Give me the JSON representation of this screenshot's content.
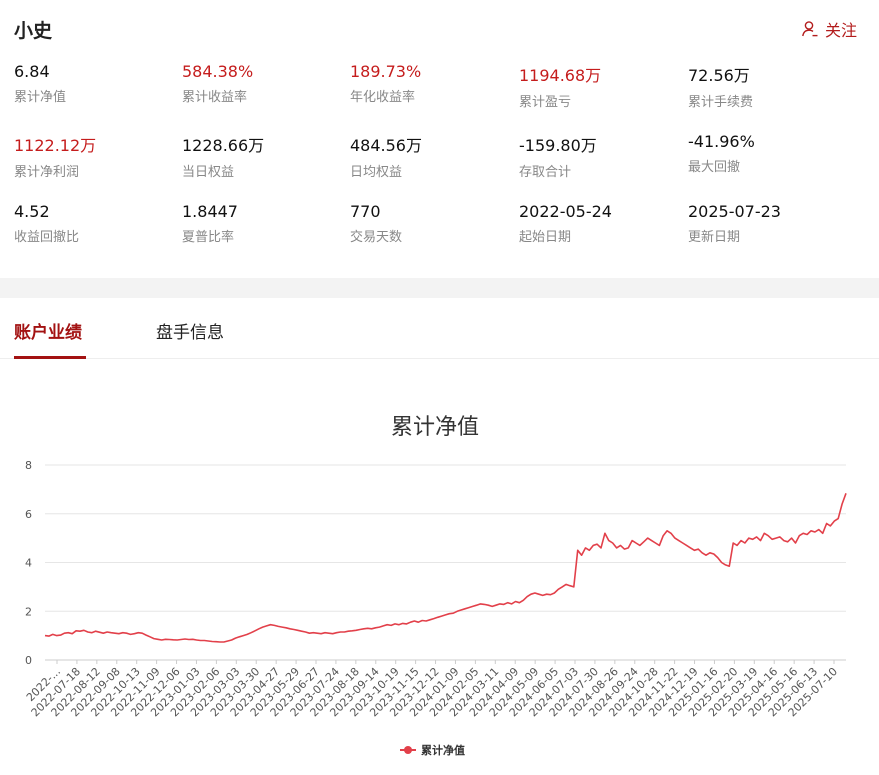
{
  "header": {
    "name": "小史",
    "follow_label": "关注"
  },
  "stats": [
    {
      "value": "6.84",
      "label": "累计净值",
      "red": false
    },
    {
      "value": "584.38%",
      "label": "累计收益率",
      "red": true
    },
    {
      "value": "189.73%",
      "label": "年化收益率",
      "red": true
    },
    {
      "value": "1194.68万",
      "label": "累计盈亏",
      "red": true
    },
    {
      "value": "72.56万",
      "label": "累计手续费",
      "red": false
    },
    {
      "value": "1122.12万",
      "label": "累计净利润",
      "red": true
    },
    {
      "value": "1228.66万",
      "label": "当日权益",
      "red": false
    },
    {
      "value": "484.56万",
      "label": "日均权益",
      "red": false
    },
    {
      "value": "-159.80万",
      "label": "存取合计",
      "red": false
    },
    {
      "value": "-41.96%",
      "label": "最大回撤",
      "red": false
    },
    {
      "value": "4.52",
      "label": "收益回撤比",
      "red": false
    },
    {
      "value": "1.8447",
      "label": "夏普比率",
      "red": false
    },
    {
      "value": "770",
      "label": "交易天数",
      "red": false
    },
    {
      "value": "2022-05-24",
      "label": "起始日期",
      "red": false
    },
    {
      "value": "2025-07-23",
      "label": "更新日期",
      "red": false
    }
  ],
  "tabs": [
    {
      "label": "账户业绩",
      "active": true
    },
    {
      "label": "盘手信息",
      "active": false
    }
  ],
  "colors": {
    "accent": "#a31212",
    "red_value": "#c51d1d",
    "series": "#e2404a"
  },
  "icons": {
    "follow": "user-outline-icon"
  },
  "chart_data": {
    "type": "line",
    "title": "累计净值",
    "legend": "bottom-center",
    "grid": true,
    "ylim": [
      0,
      8
    ],
    "yticks": [
      0,
      2,
      4,
      6,
      8
    ],
    "x_tick_labels": [
      "2022-...",
      "2022-07-18",
      "2022-08-12",
      "2022-09-08",
      "2022-10-13",
      "2022-11-09",
      "2022-12-06",
      "2023-01-03",
      "2023-02-06",
      "2023-03-03",
      "2023-03-30",
      "2023-04-27",
      "2023-05-29",
      "2023-06-27",
      "2023-07-24",
      "2023-08-18",
      "2023-09-14",
      "2023-10-19",
      "2023-11-15",
      "2023-12-12",
      "2024-01-09",
      "2024-02-05",
      "2024-03-11",
      "2024-04-09",
      "2024-05-09",
      "2024-06-05",
      "2024-07-03",
      "2024-07-30",
      "2024-08-26",
      "2024-09-24",
      "2024-10-28",
      "2024-11-22",
      "2024-12-19",
      "2025-01-16",
      "2025-02-20",
      "2025-03-19",
      "2025-04-16",
      "2025-05-16",
      "2025-06-13",
      "2025-07-10"
    ],
    "series": [
      {
        "name": "累计净值",
        "values": [
          1.0,
          0.98,
          1.05,
          1.0,
          1.02,
          1.1,
          1.12,
          1.08,
          1.2,
          1.18,
          1.22,
          1.15,
          1.12,
          1.18,
          1.14,
          1.1,
          1.15,
          1.12,
          1.1,
          1.08,
          1.12,
          1.1,
          1.05,
          1.08,
          1.12,
          1.1,
          1.02,
          0.95,
          0.88,
          0.85,
          0.82,
          0.85,
          0.84,
          0.83,
          0.82,
          0.84,
          0.86,
          0.84,
          0.85,
          0.82,
          0.8,
          0.8,
          0.78,
          0.76,
          0.75,
          0.74,
          0.74,
          0.78,
          0.82,
          0.9,
          0.95,
          1.0,
          1.05,
          1.12,
          1.2,
          1.28,
          1.35,
          1.4,
          1.45,
          1.42,
          1.38,
          1.35,
          1.32,
          1.28,
          1.25,
          1.22,
          1.18,
          1.15,
          1.1,
          1.12,
          1.1,
          1.08,
          1.12,
          1.1,
          1.08,
          1.12,
          1.15,
          1.15,
          1.18,
          1.2,
          1.22,
          1.25,
          1.28,
          1.3,
          1.28,
          1.32,
          1.35,
          1.4,
          1.45,
          1.42,
          1.48,
          1.45,
          1.5,
          1.48,
          1.55,
          1.6,
          1.55,
          1.62,
          1.6,
          1.65,
          1.7,
          1.75,
          1.8,
          1.85,
          1.9,
          1.92,
          2.0,
          2.05,
          2.1,
          2.15,
          2.2,
          2.25,
          2.3,
          2.28,
          2.25,
          2.2,
          2.25,
          2.3,
          2.28,
          2.35,
          2.3,
          2.4,
          2.35,
          2.45,
          2.6,
          2.7,
          2.75,
          2.7,
          2.65,
          2.7,
          2.68,
          2.75,
          2.9,
          3.0,
          3.1,
          3.05,
          3.0,
          4.5,
          4.3,
          4.6,
          4.5,
          4.7,
          4.75,
          4.6,
          5.2,
          4.9,
          4.8,
          4.6,
          4.7,
          4.55,
          4.6,
          4.9,
          4.8,
          4.7,
          4.85,
          5.0,
          4.9,
          4.8,
          4.7,
          5.1,
          5.3,
          5.2,
          5.0,
          4.9,
          4.8,
          4.7,
          4.6,
          4.5,
          4.55,
          4.4,
          4.3,
          4.4,
          4.35,
          4.2,
          4.0,
          3.9,
          3.85,
          4.8,
          4.7,
          4.9,
          4.8,
          5.0,
          4.95,
          5.05,
          4.9,
          5.2,
          5.1,
          4.95,
          5.0,
          5.05,
          4.9,
          4.85,
          5.0,
          4.8,
          5.1,
          5.2,
          5.15,
          5.3,
          5.25,
          5.35,
          5.2,
          5.6,
          5.5,
          5.7,
          5.8,
          6.4,
          6.84
        ]
      }
    ]
  }
}
